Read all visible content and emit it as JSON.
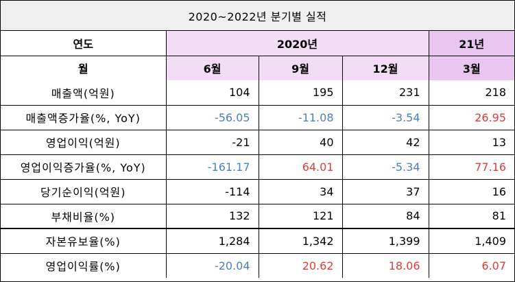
{
  "title": "2020~2022년 분기별 실적",
  "header": {
    "year_label": "연도",
    "month_label": "월",
    "year_2020": "2020년",
    "year_21": "21년",
    "months": [
      "6월",
      "9월",
      "12월",
      "3월"
    ]
  },
  "colors": {
    "negative": "#4a7fbf",
    "positive": "#e03a3a",
    "header_pink": "#f3dcf6",
    "header_pink_strong": "#e9c6ef",
    "title_bg": "#efefef"
  },
  "rows": [
    {
      "label": "매출액(억원)",
      "values": [
        "104",
        "195",
        "231",
        "218"
      ],
      "tones": [
        "plain",
        "plain",
        "plain",
        "plain"
      ]
    },
    {
      "label": "매출액증가율(%, YoY)",
      "values": [
        "-56.05",
        "-11.08",
        "-3.54",
        "26.95"
      ],
      "tones": [
        "neg",
        "neg",
        "neg",
        "pos"
      ]
    },
    {
      "label": "영업이익(억원)",
      "values": [
        "-21",
        "40",
        "42",
        "13"
      ],
      "tones": [
        "plain",
        "plain",
        "plain",
        "plain"
      ]
    },
    {
      "label": "영업이익증가율(%, YoY)",
      "values": [
        "-161.17",
        "64.01",
        "-5.34",
        "77.16"
      ],
      "tones": [
        "neg",
        "pos",
        "neg",
        "pos"
      ]
    },
    {
      "label": "당기순이익(억원)",
      "values": [
        "-114",
        "34",
        "37",
        "16"
      ],
      "tones": [
        "plain",
        "plain",
        "plain",
        "plain"
      ]
    },
    {
      "label": "부채비율(%)",
      "values": [
        "132",
        "121",
        "84",
        "81"
      ],
      "tones": [
        "plain",
        "plain",
        "plain",
        "plain"
      ]
    },
    {
      "label": "자본유보율(%)",
      "values": [
        "1,284",
        "1,342",
        "1,399",
        "1,409"
      ],
      "tones": [
        "plain",
        "plain",
        "plain",
        "plain"
      ]
    },
    {
      "label": "영업이익률(%)",
      "values": [
        "-20.04",
        "20.62",
        "18.06",
        "6.07"
      ],
      "tones": [
        "neg",
        "pos",
        "pos",
        "pos"
      ]
    }
  ]
}
